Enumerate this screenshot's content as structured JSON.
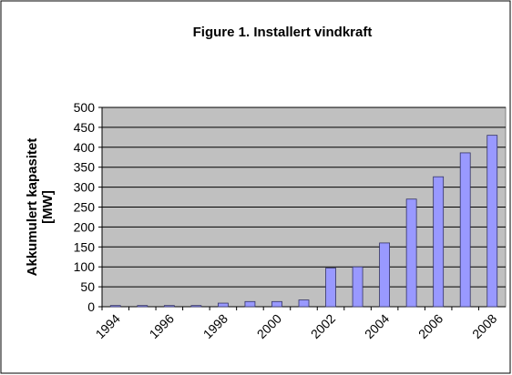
{
  "chart_data": {
    "type": "bar",
    "title": "Figure 1. Installert vindkraft",
    "ylabel": [
      "Akkumulert kapasitet",
      "[MW]"
    ],
    "categories": [
      "1994",
      null,
      "1996",
      null,
      "1998",
      null,
      "2000",
      null,
      "2002",
      null,
      "2004",
      null,
      "2006",
      null,
      "2008"
    ],
    "values": [
      3,
      3,
      3,
      3,
      9,
      13,
      13,
      17,
      97,
      100,
      160,
      270,
      326,
      386,
      430
    ],
    "color": "#9999ff",
    "ylim": [
      0,
      500
    ],
    "yticks": [
      0,
      50,
      100,
      150,
      200,
      250,
      300,
      350,
      400,
      450,
      500
    ],
    "grid": true
  }
}
